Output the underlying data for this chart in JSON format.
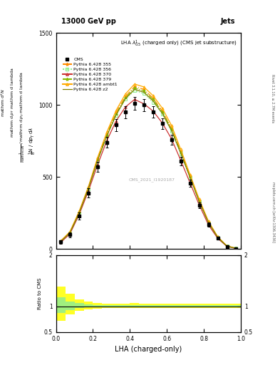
{
  "title_top": "13000 GeV pp",
  "title_right": "Jets",
  "panel_title": "LHA $\\lambda^{1}_{0.5}$ (charged only) (CMS jet substructure)",
  "xlabel": "LHA (charged-only)",
  "ylabel_main_line1": "mathrm d",
  "ylabel_main_line2": "mathrm d p",
  "ylabel_ratio": "Ratio to CMS",
  "watermark": "CMS_2021_I1920187",
  "right_label": "mcplots.cern.ch [arXiv:1306.3436]",
  "right_label2": "Rivet 3.1.10, ≥ 2.7M events",
  "xvalues": [
    0.0,
    0.05,
    0.1,
    0.15,
    0.2,
    0.25,
    0.3,
    0.35,
    0.4,
    0.45,
    0.5,
    0.55,
    0.6,
    0.65,
    0.7,
    0.75,
    0.8,
    0.85,
    0.9,
    0.95,
    1.0
  ],
  "cms_data": [
    50,
    100,
    230,
    390,
    570,
    740,
    860,
    950,
    1010,
    1000,
    950,
    870,
    760,
    610,
    455,
    305,
    170,
    75,
    18,
    4,
    0
  ],
  "cms_errors": [
    12,
    18,
    25,
    30,
    35,
    38,
    40,
    42,
    44,
    42,
    40,
    38,
    35,
    30,
    25,
    20,
    15,
    10,
    5,
    2,
    1
  ],
  "pythia_355": [
    55,
    118,
    255,
    425,
    628,
    800,
    948,
    1058,
    1128,
    1108,
    1048,
    958,
    838,
    678,
    508,
    338,
    188,
    84,
    21,
    5,
    0
  ],
  "pythia_356": [
    52,
    112,
    248,
    418,
    612,
    782,
    928,
    1038,
    1098,
    1078,
    1018,
    938,
    818,
    662,
    498,
    328,
    182,
    80,
    20,
    5,
    0
  ],
  "pythia_370": [
    45,
    105,
    238,
    402,
    584,
    752,
    888,
    985,
    1038,
    1008,
    958,
    875,
    765,
    615,
    460,
    306,
    168,
    74,
    18,
    4,
    0
  ],
  "pythia_379": [
    53,
    115,
    252,
    422,
    618,
    790,
    936,
    1048,
    1118,
    1098,
    1038,
    952,
    832,
    672,
    502,
    332,
    186,
    82,
    20,
    5,
    0
  ],
  "pythia_ambt1": [
    56,
    120,
    262,
    432,
    635,
    812,
    962,
    1075,
    1145,
    1125,
    1065,
    978,
    858,
    692,
    518,
    346,
    193,
    86,
    22,
    6,
    0
  ],
  "pythia_z2": [
    52,
    113,
    250,
    420,
    615,
    785,
    930,
    1042,
    1108,
    1088,
    1028,
    942,
    822,
    665,
    498,
    330,
    184,
    81,
    20,
    5,
    0
  ],
  "colors": {
    "cms": "#000000",
    "p355": "#FF8C00",
    "p356": "#90EE90",
    "p370": "#CC3333",
    "p379": "#88BB00",
    "pambt1": "#FFAA00",
    "pz2": "#808000"
  },
  "ratio_yellow_low": [
    0.72,
    0.85,
    0.92,
    0.94,
    0.96,
    0.97,
    0.97,
    0.97,
    0.97,
    0.97,
    0.97,
    0.97,
    0.97,
    0.97,
    0.97,
    0.97,
    0.97,
    0.97,
    0.97,
    0.97
  ],
  "ratio_yellow_high": [
    1.38,
    1.25,
    1.13,
    1.09,
    1.06,
    1.05,
    1.05,
    1.05,
    1.07,
    1.05,
    1.05,
    1.05,
    1.05,
    1.05,
    1.05,
    1.05,
    1.05,
    1.05,
    1.05,
    1.05
  ],
  "ratio_green_low": [
    0.87,
    0.93,
    0.97,
    0.98,
    0.99,
    0.99,
    0.99,
    0.99,
    0.99,
    0.99,
    0.99,
    0.99,
    0.99,
    0.99,
    0.99,
    0.99,
    0.99,
    0.99,
    0.99,
    0.99
  ],
  "ratio_green_high": [
    1.18,
    1.1,
    1.06,
    1.04,
    1.03,
    1.03,
    1.03,
    1.03,
    1.03,
    1.03,
    1.03,
    1.03,
    1.03,
    1.03,
    1.03,
    1.03,
    1.03,
    1.03,
    1.03,
    1.03
  ]
}
